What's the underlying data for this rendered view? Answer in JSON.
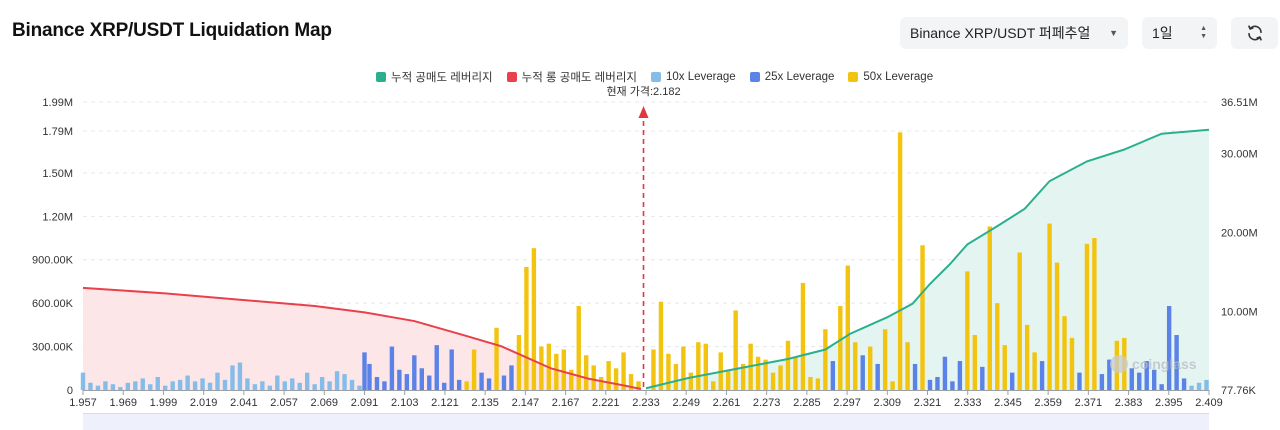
{
  "header": {
    "title": "Binance XRP/USDT Liquidation Map",
    "exchange_select": "Binance XRP/USDT 퍼페추얼",
    "range_select": "1일"
  },
  "watermark": "coinglass",
  "colors": {
    "cum_short": "#2bb08f",
    "cum_long": "#e8414b",
    "lev10": "#86bde8",
    "lev25": "#5b82e6",
    "lev50": "#f2c40f",
    "current_price_line": "#e0383f"
  },
  "chart_data": {
    "type": "bar",
    "legend": [
      {
        "key": "cum_short",
        "label": "누적 공매도 레버리지",
        "color": "#2bb08f"
      },
      {
        "key": "cum_long",
        "label": "누적 롱 공매도 레버리지",
        "color": "#e8414b"
      },
      {
        "key": "lev10",
        "label": "10x Leverage",
        "color": "#86bde8"
      },
      {
        "key": "lev25",
        "label": "25x Leverage",
        "color": "#5b82e6"
      },
      {
        "key": "lev50",
        "label": "50x Leverage",
        "color": "#f2c40f"
      }
    ],
    "current_price_label": "현재 가격:2.182",
    "current_price": 2.182,
    "x_tick_labels": [
      "1.957",
      "1.969",
      "1.999",
      "2.019",
      "2.041",
      "2.057",
      "2.069",
      "2.091",
      "2.103",
      "2.121",
      "2.135",
      "2.147",
      "2.167",
      "2.221",
      "2.233",
      "2.249",
      "2.261",
      "2.273",
      "2.285",
      "2.297",
      "2.309",
      "2.321",
      "2.333",
      "2.345",
      "2.359",
      "2.371",
      "2.383",
      "2.395",
      "2.409"
    ],
    "y_left_ticks": [
      "0",
      "300.00K",
      "600.00K",
      "900.00K",
      "1.20M",
      "1.50M",
      "1.79M",
      "1.99M"
    ],
    "y_left_tick_values": [
      0,
      300000,
      600000,
      900000,
      1200000,
      1500000,
      1790000,
      1990000
    ],
    "y_right_ticks": [
      "77.76K",
      "10.00M",
      "20.00M",
      "30.00M",
      "36.51M"
    ],
    "y_right_tick_values": [
      77760,
      10000000,
      20000000,
      30000000,
      36510000
    ],
    "ylim_left": [
      0,
      1990000
    ],
    "ylim_right": [
      77760,
      36510000
    ],
    "x_range": [
      1.957,
      2.409
    ],
    "bars": [
      [
        1.957,
        120000,
        "lev10"
      ],
      [
        1.96,
        50000,
        "lev10"
      ],
      [
        1.963,
        30000,
        "lev10"
      ],
      [
        1.966,
        60000,
        "lev10"
      ],
      [
        1.969,
        40000,
        "lev10"
      ],
      [
        1.972,
        20000,
        "lev10"
      ],
      [
        1.975,
        50000,
        "lev10"
      ],
      [
        1.978,
        60000,
        "lev10"
      ],
      [
        1.981,
        80000,
        "lev10"
      ],
      [
        1.984,
        40000,
        "lev10"
      ],
      [
        1.987,
        90000,
        "lev10"
      ],
      [
        1.99,
        30000,
        "lev10"
      ],
      [
        1.993,
        60000,
        "lev10"
      ],
      [
        1.996,
        70000,
        "lev10"
      ],
      [
        1.999,
        100000,
        "lev10"
      ],
      [
        2.002,
        60000,
        "lev10"
      ],
      [
        2.005,
        80000,
        "lev10"
      ],
      [
        2.008,
        50000,
        "lev10"
      ],
      [
        2.011,
        120000,
        "lev10"
      ],
      [
        2.014,
        70000,
        "lev10"
      ],
      [
        2.017,
        170000,
        "lev10"
      ],
      [
        2.02,
        190000,
        "lev10"
      ],
      [
        2.023,
        80000,
        "lev10"
      ],
      [
        2.026,
        40000,
        "lev10"
      ],
      [
        2.029,
        60000,
        "lev10"
      ],
      [
        2.032,
        30000,
        "lev10"
      ],
      [
        2.035,
        100000,
        "lev10"
      ],
      [
        2.038,
        60000,
        "lev10"
      ],
      [
        2.041,
        80000,
        "lev10"
      ],
      [
        2.044,
        50000,
        "lev10"
      ],
      [
        2.047,
        120000,
        "lev10"
      ],
      [
        2.05,
        40000,
        "lev10"
      ],
      [
        2.053,
        90000,
        "lev10"
      ],
      [
        2.056,
        60000,
        "lev10"
      ],
      [
        2.059,
        130000,
        "lev10"
      ],
      [
        2.062,
        110000,
        "lev10"
      ],
      [
        2.065,
        70000,
        "lev10"
      ],
      [
        2.068,
        30000,
        "lev10"
      ],
      [
        2.07,
        260000,
        "lev25"
      ],
      [
        2.072,
        180000,
        "lev25"
      ],
      [
        2.075,
        90000,
        "lev25"
      ],
      [
        2.078,
        60000,
        "lev25"
      ],
      [
        2.081,
        300000,
        "lev25"
      ],
      [
        2.084,
        140000,
        "lev25"
      ],
      [
        2.087,
        110000,
        "lev25"
      ],
      [
        2.09,
        240000,
        "lev25"
      ],
      [
        2.093,
        150000,
        "lev25"
      ],
      [
        2.096,
        100000,
        "lev25"
      ],
      [
        2.099,
        310000,
        "lev25"
      ],
      [
        2.102,
        50000,
        "lev25"
      ],
      [
        2.105,
        280000,
        "lev25"
      ],
      [
        2.108,
        70000,
        "lev25"
      ],
      [
        2.111,
        60000,
        "lev50"
      ],
      [
        2.114,
        280000,
        "lev50"
      ],
      [
        2.117,
        120000,
        "lev25"
      ],
      [
        2.12,
        80000,
        "lev25"
      ],
      [
        2.123,
        430000,
        "lev50"
      ],
      [
        2.126,
        100000,
        "lev25"
      ],
      [
        2.129,
        170000,
        "lev25"
      ],
      [
        2.132,
        380000,
        "lev50"
      ],
      [
        2.135,
        850000,
        "lev50"
      ],
      [
        2.138,
        980000,
        "lev50"
      ],
      [
        2.141,
        300000,
        "lev50"
      ],
      [
        2.144,
        320000,
        "lev50"
      ],
      [
        2.147,
        250000,
        "lev50"
      ],
      [
        2.15,
        280000,
        "lev50"
      ],
      [
        2.153,
        140000,
        "lev50"
      ],
      [
        2.156,
        580000,
        "lev50"
      ],
      [
        2.159,
        240000,
        "lev50"
      ],
      [
        2.162,
        170000,
        "lev50"
      ],
      [
        2.165,
        90000,
        "lev50"
      ],
      [
        2.168,
        200000,
        "lev50"
      ],
      [
        2.171,
        150000,
        "lev50"
      ],
      [
        2.174,
        260000,
        "lev50"
      ],
      [
        2.177,
        110000,
        "lev50"
      ],
      [
        2.18,
        60000,
        "lev50"
      ],
      [
        2.186,
        280000,
        "lev50"
      ],
      [
        2.189,
        610000,
        "lev50"
      ],
      [
        2.192,
        250000,
        "lev50"
      ],
      [
        2.195,
        180000,
        "lev50"
      ],
      [
        2.198,
        300000,
        "lev50"
      ],
      [
        2.201,
        120000,
        "lev50"
      ],
      [
        2.204,
        330000,
        "lev50"
      ],
      [
        2.207,
        320000,
        "lev50"
      ],
      [
        2.21,
        60000,
        "lev50"
      ],
      [
        2.213,
        260000,
        "lev50"
      ],
      [
        2.216,
        140000,
        "lev50"
      ],
      [
        2.219,
        550000,
        "lev50"
      ],
      [
        2.222,
        180000,
        "lev50"
      ],
      [
        2.225,
        320000,
        "lev50"
      ],
      [
        2.228,
        230000,
        "lev50"
      ],
      [
        2.231,
        210000,
        "lev50"
      ],
      [
        2.234,
        120000,
        "lev50"
      ],
      [
        2.237,
        170000,
        "lev50"
      ],
      [
        2.24,
        340000,
        "lev50"
      ],
      [
        2.243,
        230000,
        "lev50"
      ],
      [
        2.246,
        740000,
        "lev50"
      ],
      [
        2.249,
        90000,
        "lev50"
      ],
      [
        2.252,
        80000,
        "lev50"
      ],
      [
        2.255,
        420000,
        "lev50"
      ],
      [
        2.258,
        200000,
        "lev25"
      ],
      [
        2.261,
        580000,
        "lev50"
      ],
      [
        2.264,
        860000,
        "lev50"
      ],
      [
        2.267,
        330000,
        "lev50"
      ],
      [
        2.27,
        240000,
        "lev25"
      ],
      [
        2.273,
        300000,
        "lev50"
      ],
      [
        2.276,
        180000,
        "lev25"
      ],
      [
        2.279,
        420000,
        "lev50"
      ],
      [
        2.282,
        60000,
        "lev50"
      ],
      [
        2.285,
        1780000,
        "lev50"
      ],
      [
        2.288,
        330000,
        "lev50"
      ],
      [
        2.291,
        180000,
        "lev25"
      ],
      [
        2.294,
        1000000,
        "lev50"
      ],
      [
        2.297,
        70000,
        "lev25"
      ],
      [
        2.3,
        90000,
        "lev25"
      ],
      [
        2.303,
        230000,
        "lev25"
      ],
      [
        2.306,
        60000,
        "lev25"
      ],
      [
        2.309,
        200000,
        "lev25"
      ],
      [
        2.312,
        820000,
        "lev50"
      ],
      [
        2.315,
        380000,
        "lev50"
      ],
      [
        2.318,
        160000,
        "lev25"
      ],
      [
        2.321,
        1130000,
        "lev50"
      ],
      [
        2.324,
        600000,
        "lev50"
      ],
      [
        2.327,
        310000,
        "lev50"
      ],
      [
        2.33,
        120000,
        "lev25"
      ],
      [
        2.333,
        950000,
        "lev50"
      ],
      [
        2.336,
        450000,
        "lev50"
      ],
      [
        2.339,
        260000,
        "lev50"
      ],
      [
        2.342,
        200000,
        "lev25"
      ],
      [
        2.345,
        1150000,
        "lev50"
      ],
      [
        2.348,
        880000,
        "lev50"
      ],
      [
        2.351,
        510000,
        "lev50"
      ],
      [
        2.354,
        360000,
        "lev50"
      ],
      [
        2.357,
        120000,
        "lev25"
      ],
      [
        2.36,
        1010000,
        "lev50"
      ],
      [
        2.363,
        1050000,
        "lev50"
      ],
      [
        2.366,
        110000,
        "lev25"
      ],
      [
        2.369,
        210000,
        "lev25"
      ],
      [
        2.372,
        340000,
        "lev50"
      ],
      [
        2.375,
        360000,
        "lev50"
      ],
      [
        2.378,
        150000,
        "lev25"
      ],
      [
        2.381,
        120000,
        "lev25"
      ],
      [
        2.384,
        200000,
        "lev25"
      ],
      [
        2.387,
        140000,
        "lev25"
      ],
      [
        2.39,
        40000,
        "lev25"
      ],
      [
        2.393,
        580000,
        "lev25"
      ],
      [
        2.396,
        380000,
        "lev25"
      ],
      [
        2.399,
        80000,
        "lev25"
      ],
      [
        2.402,
        30000,
        "lev10"
      ],
      [
        2.405,
        50000,
        "lev10"
      ],
      [
        2.408,
        70000,
        "lev10"
      ]
    ],
    "cum_long_line": [
      [
        1.957,
        13000000
      ],
      [
        1.99,
        12300000
      ],
      [
        2.02,
        11500000
      ],
      [
        2.05,
        10700000
      ],
      [
        2.07,
        9900000
      ],
      [
        2.09,
        8800000
      ],
      [
        2.11,
        7000000
      ],
      [
        2.125,
        5600000
      ],
      [
        2.135,
        4200000
      ],
      [
        2.145,
        2800000
      ],
      [
        2.16,
        1500000
      ],
      [
        2.175,
        600000
      ],
      [
        2.181,
        200000
      ]
    ],
    "cum_short_line": [
      [
        2.183,
        300000
      ],
      [
        2.2,
        1600000
      ],
      [
        2.22,
        2800000
      ],
      [
        2.24,
        4000000
      ],
      [
        2.255,
        5200000
      ],
      [
        2.265,
        7200000
      ],
      [
        2.28,
        9300000
      ],
      [
        2.29,
        11000000
      ],
      [
        2.297,
        13500000
      ],
      [
        2.305,
        16000000
      ],
      [
        2.312,
        18500000
      ],
      [
        2.325,
        21000000
      ],
      [
        2.335,
        23000000
      ],
      [
        2.345,
        26500000
      ],
      [
        2.36,
        29000000
      ],
      [
        2.375,
        30500000
      ],
      [
        2.39,
        32500000
      ],
      [
        2.409,
        33000000
      ]
    ]
  }
}
